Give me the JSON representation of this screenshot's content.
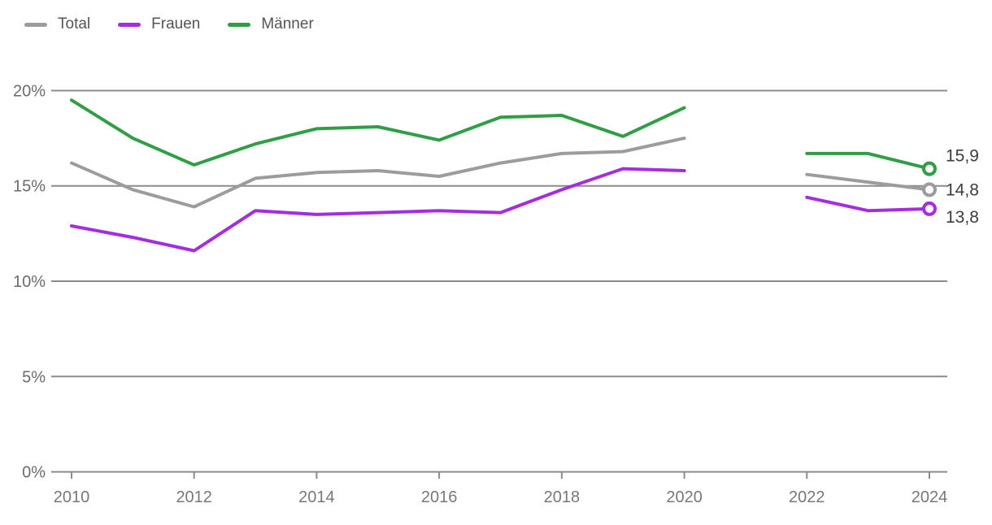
{
  "chart_data": {
    "type": "line",
    "title": "",
    "xlabel": "",
    "ylabel": "",
    "x": [
      2010,
      2011,
      2012,
      2013,
      2014,
      2015,
      2016,
      2017,
      2018,
      2019,
      2020,
      2022,
      2023,
      2024
    ],
    "x_gap_note": "no data point for 2021 (line break between 2020 and 2022)",
    "series": [
      {
        "name": "Total",
        "color": "#9c9c9c",
        "values": [
          16.2,
          14.8,
          13.9,
          15.4,
          15.7,
          15.8,
          15.5,
          16.2,
          16.7,
          16.8,
          17.5,
          15.6,
          15.2,
          14.8
        ],
        "end_label": "14,8",
        "label_dy": 7
      },
      {
        "name": "Frauen",
        "color": "#a62ce2",
        "values": [
          12.9,
          12.3,
          11.6,
          13.7,
          13.5,
          13.6,
          13.7,
          13.6,
          14.8,
          15.9,
          15.8,
          14.4,
          13.7,
          13.8
        ],
        "end_label": "13,8",
        "label_dy": 17
      },
      {
        "name": "Männer",
        "color": "#2f9e44",
        "values": [
          19.5,
          17.5,
          16.1,
          17.2,
          18.0,
          18.1,
          17.4,
          18.6,
          18.7,
          17.6,
          19.1,
          16.7,
          16.7,
          15.9
        ],
        "end_label": "15,9",
        "label_dy": -9
      }
    ],
    "yticks": [
      0,
      5,
      10,
      15,
      20
    ],
    "ytick_labels": [
      "0%",
      "5%",
      "10%",
      "15%",
      "20%"
    ],
    "xticks": [
      2010,
      2012,
      2014,
      2016,
      2018,
      2020,
      2022,
      2024
    ],
    "ylim": [
      0,
      21.5
    ],
    "grid": "horizontal",
    "legend_position": "top-left",
    "unit": "percent",
    "decimal_separator": ","
  },
  "colors": {
    "background": "#ffffff",
    "gridline": "#8c8c8c",
    "ytick_label": "#6b6b6b",
    "xtick_label": "#787878",
    "end_label": "#3c3c3c",
    "legend_text": "#555555"
  }
}
